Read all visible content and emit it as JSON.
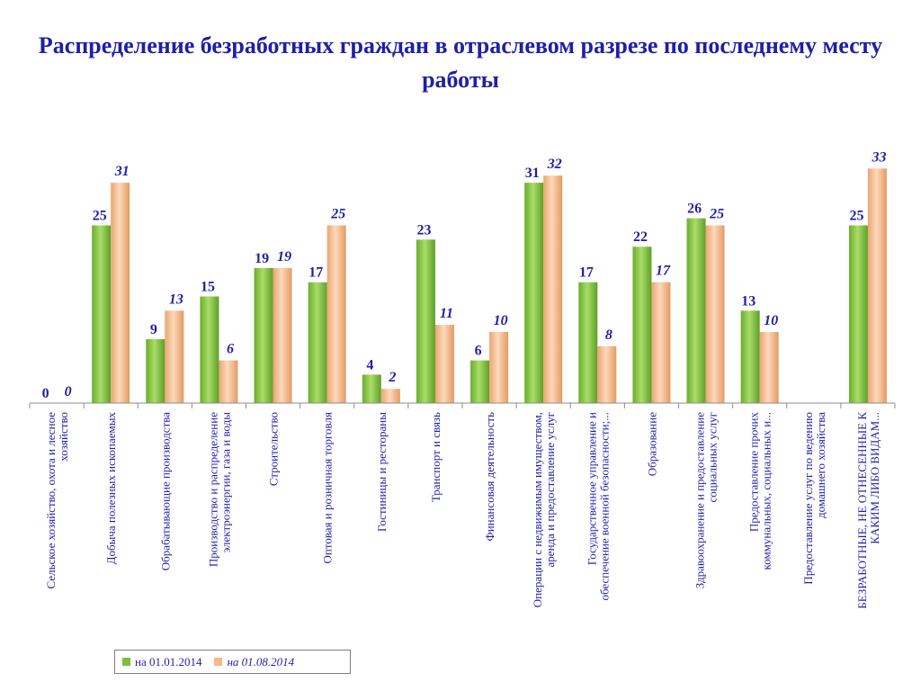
{
  "title": "Распределение безработных граждан в отраслевом разрезе по последнему месту работы",
  "legend": {
    "series1_label": "на 01.01.2014",
    "series2_label": "на 01.08.2014"
  },
  "colors": {
    "series1": "#7dbf3b",
    "series1_light": "#a9dd6a",
    "series2": "#f5b98a",
    "series2_light": "#fcd9bb",
    "text": "#1f1fa8",
    "axis": "#8c8c8c"
  },
  "chart_data": {
    "type": "bar",
    "title": "Распределение безработных граждан в отраслевом разрезе по последнему месту работы",
    "xlabel": "",
    "ylabel": "",
    "ylim": [
      0,
      33
    ],
    "grid": false,
    "legend_position": "bottom-left",
    "categories": [
      [
        "Сельское хозяйство, охота и лесное",
        "хозяйство"
      ],
      [
        "Добыча полезных ископаемых"
      ],
      [
        "Обрабатывающие производства"
      ],
      [
        "Производство и распределение",
        "электроэнергии, газа и воды"
      ],
      [
        "Строительство"
      ],
      [
        "Оптовая и розничная торговля"
      ],
      [
        "Гостиницы и рестораны"
      ],
      [
        "Транспорт и связь"
      ],
      [
        "Финансовая деятельность"
      ],
      [
        "Операции с недвижимым имуществом,",
        "аренда и предоставление услуг"
      ],
      [
        "Государственное управление и",
        "обеспечение военной безопасности;..."
      ],
      [
        "Образование"
      ],
      [
        "Здравоохранение и предоставление",
        "социальных услуг"
      ],
      [
        "Предоставление прочих",
        "коммунальных, социальных и..."
      ],
      [
        "Предоставление услуг по ведению",
        "домашнего хозяйства"
      ],
      [
        "БЕЗРАБОТНЫЕ, НЕ ОТНЕСЕННЫЕ К",
        "КАКИМ ЛИБО ВИДАМ..."
      ]
    ],
    "series": [
      {
        "name": "на 01.01.2014",
        "values": [
          0,
          25,
          9,
          15,
          19,
          17,
          4,
          23,
          6,
          31,
          17,
          22,
          26,
          13,
          null,
          25
        ]
      },
      {
        "name": "на 01.08.2014",
        "values": [
          0,
          31,
          13,
          6,
          19,
          25,
          2,
          11,
          10,
          32,
          8,
          17,
          25,
          10,
          null,
          33
        ]
      }
    ]
  }
}
